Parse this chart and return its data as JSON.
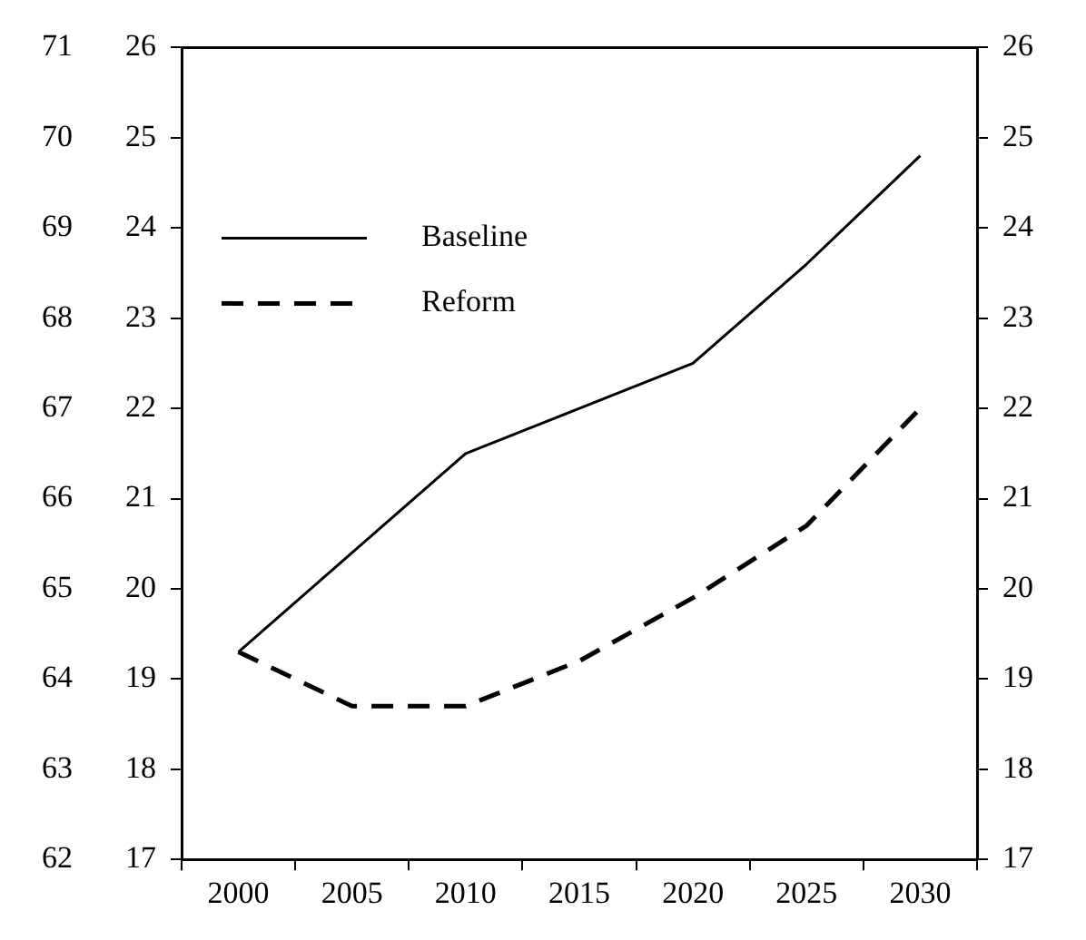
{
  "chart_data": {
    "type": "line",
    "categories": [
      "2000",
      "2005",
      "2010",
      "2015",
      "2020",
      "2025",
      "2030"
    ],
    "series": [
      {
        "name": "Baseline",
        "color": "#000000",
        "line_style": "solid",
        "values": [
          19.3,
          20.4,
          21.5,
          22.0,
          22.5,
          23.6,
          24.8
        ]
      },
      {
        "name": "Reform",
        "color": "#000000",
        "line_style": "dashed",
        "values": [
          19.3,
          18.7,
          18.7,
          19.2,
          19.9,
          20.7,
          22.0
        ]
      }
    ],
    "ylim": [
      17,
      26
    ],
    "yticks": [
      17,
      18,
      19,
      20,
      21,
      22,
      23,
      24,
      25,
      26
    ],
    "y2lim": [
      17,
      26
    ],
    "y2ticks": [
      17,
      18,
      19,
      20,
      21,
      22,
      23,
      24,
      25,
      26
    ],
    "y3lim": [
      62,
      71
    ],
    "y3ticks": [
      62,
      63,
      64,
      65,
      66,
      67,
      68,
      69,
      70,
      71
    ],
    "marker": "none",
    "grid": false,
    "legend": "top left"
  }
}
